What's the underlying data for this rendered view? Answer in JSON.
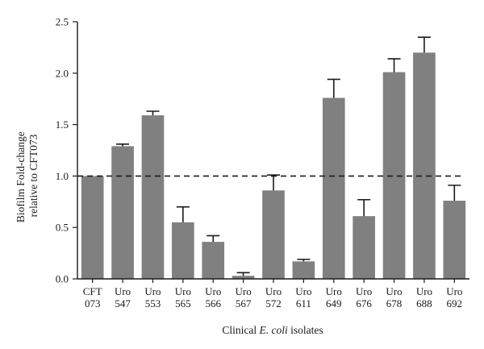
{
  "chart_data": {
    "type": "bar",
    "categories": [
      [
        "CFT",
        "073"
      ],
      [
        "Uro",
        "547"
      ],
      [
        "Uro",
        "553"
      ],
      [
        "Uro",
        "565"
      ],
      [
        "Uro",
        "566"
      ],
      [
        "Uro",
        "567"
      ],
      [
        "Uro",
        "572"
      ],
      [
        "Uro",
        "611"
      ],
      [
        "Uro",
        "649"
      ],
      [
        "Uro",
        "676"
      ],
      [
        "Uro",
        "678"
      ],
      [
        "Uro",
        "688"
      ],
      [
        "Uro",
        "692"
      ]
    ],
    "values": [
      1.0,
      1.29,
      1.59,
      0.55,
      0.36,
      0.03,
      0.86,
      0.17,
      1.76,
      0.61,
      2.01,
      2.2,
      0.76
    ],
    "errors": [
      0.0,
      0.02,
      0.04,
      0.15,
      0.06,
      0.03,
      0.15,
      0.02,
      0.18,
      0.16,
      0.13,
      0.15,
      0.15
    ],
    "reference_line": 1.0,
    "xlabel_prefix": "Clinical ",
    "xlabel_italic": "E. coli",
    "xlabel_suffix": " isolates",
    "ylabel_line1": "Biofilm Fold-change",
    "ylabel_line2": "relative to CFT073",
    "ylim": [
      0,
      2.5
    ],
    "yticks": [
      "0.0",
      "0.5",
      "1.0",
      "1.5",
      "2.0",
      "2.5"
    ],
    "grid": false,
    "colors": {
      "bar": "#808080",
      "axis": "#1a1a1a",
      "reference": "#1a1a1a"
    }
  }
}
